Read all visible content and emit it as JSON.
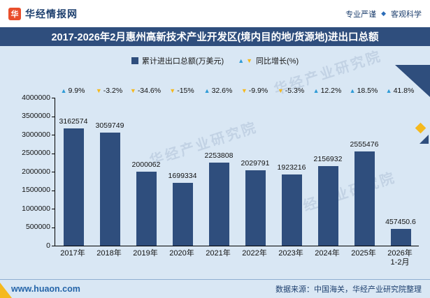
{
  "header": {
    "brand": "华经情报网",
    "logo_glyph": "华",
    "slogan_left": "专业严谨",
    "separator": "◆",
    "slogan_right": "客观科学"
  },
  "title_bar": {
    "title": "2017-2026年2月惠州高新技术产业开发区(境内目的地/货源地)进出口总额"
  },
  "legend": {
    "bar_label": "累计进出口总额(万美元)",
    "growth_label": "同比增长(%)",
    "up_glyph": "▲",
    "down_glyph": "▼"
  },
  "watermark": "华经产业研究院",
  "footer": {
    "site": "www.huaon.com",
    "source": "数据来源：中国海关，华经产业研究院整理"
  },
  "colors": {
    "bar": "#2f4e7d",
    "growth_up": "#2e9bd6",
    "growth_down": "#f5b91e",
    "page_bg": "#d9e7f4",
    "title_bg": "#2f4e7d"
  },
  "chart_data": {
    "type": "bar",
    "title": "2017-2026年2月惠州高新技术产业开发区(境内目的地/货源地)进出口总额",
    "categories": [
      "2017年",
      "2018年",
      "2019年",
      "2020年",
      "2021年",
      "2022年",
      "2023年",
      "2024年",
      "2025年",
      "2026年\n1-2月"
    ],
    "series": [
      {
        "name": "累计进出口总额(万美元)",
        "type": "bar",
        "values": [
          3162574,
          3059749,
          2000062,
          1699334,
          2253808,
          2029791,
          1923216,
          2156932,
          2555476,
          457450.6
        ]
      },
      {
        "name": "同比增长(%)",
        "type": "marker",
        "values": [
          9.9,
          -3.2,
          -34.6,
          -15,
          32.6,
          -9.9,
          -5.3,
          12.2,
          18.5,
          41.8
        ]
      }
    ],
    "value_labels": [
      "3162574",
      "3059749",
      "2000062",
      "1699334",
      "2253808",
      "2029791",
      "1923216",
      "2156932",
      "2555476",
      "457450.6"
    ],
    "growth_labels": [
      "9.9%",
      "-3.2%",
      "-34.6%",
      "-15%",
      "32.6%",
      "-9.9%",
      "-5.3%",
      "12.2%",
      "18.5%",
      "41.8%"
    ],
    "xlabel": "",
    "ylabel": "",
    "ylim": [
      0,
      4000000
    ],
    "ytick_step": 500000,
    "ytick_labels": [
      "4000000",
      "3500000",
      "3000000",
      "2500000",
      "2000000",
      "1500000",
      "1000000",
      "500000",
      "0"
    ],
    "grid": false,
    "legend_position": "top"
  }
}
